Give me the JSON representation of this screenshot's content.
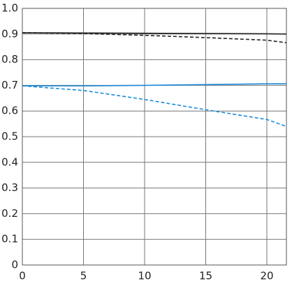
{
  "chart_data": {
    "type": "line",
    "x": [
      0,
      5,
      10,
      15,
      20,
      21.6
    ],
    "series": [
      {
        "color": "#222222",
        "dashed": false,
        "values": [
          0.905,
          0.904,
          0.903,
          0.902,
          0.901,
          0.9
        ]
      },
      {
        "color": "#222222",
        "dashed": true,
        "values": [
          0.905,
          0.902,
          0.895,
          0.886,
          0.876,
          0.866
        ]
      },
      {
        "color": "#1a8ad8",
        "dashed": false,
        "values": [
          0.698,
          0.698,
          0.7,
          0.703,
          0.706,
          0.706
        ]
      },
      {
        "color": "#1a8ad8",
        "dashed": true,
        "values": [
          0.698,
          0.68,
          0.645,
          0.605,
          0.567,
          0.54
        ]
      }
    ],
    "xlim": [
      0,
      21.6
    ],
    "ylim": [
      0,
      1
    ],
    "xticks": [
      0,
      5,
      10,
      15,
      20
    ],
    "yticks": [
      0,
      0.1,
      0.2,
      0.3,
      0.4,
      0.5,
      0.6,
      0.7,
      0.8,
      0.9,
      {
        "value": 1,
        "label": "1.0"
      }
    ],
    "grid": true
  }
}
